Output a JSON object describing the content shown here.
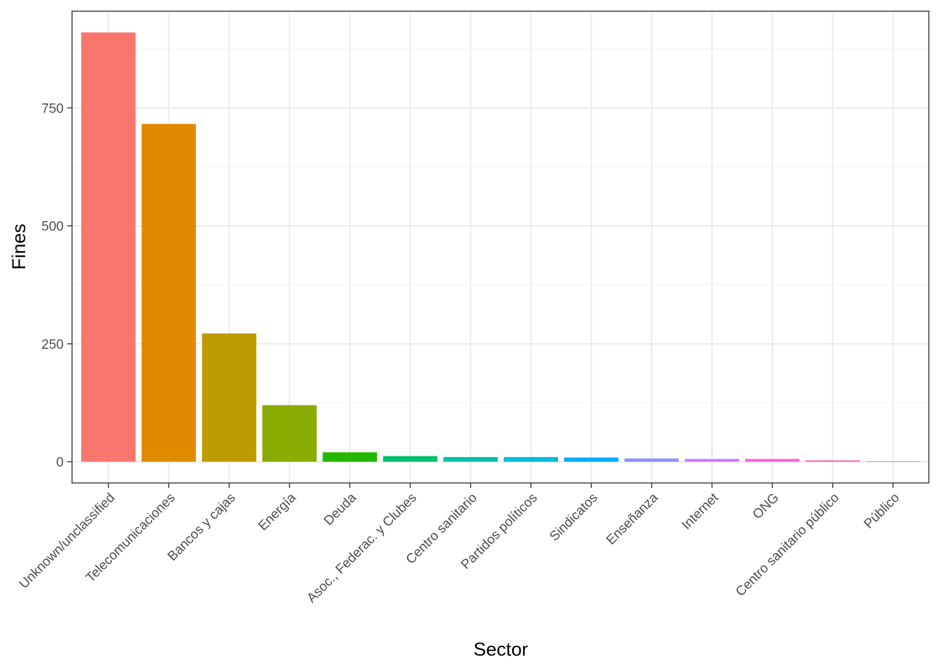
{
  "chart_data": {
    "type": "bar",
    "title": "",
    "xlabel": "Sector",
    "ylabel": "Fines",
    "ylim": [
      -45,
      955
    ],
    "y_ticks": [
      0,
      250,
      500,
      750
    ],
    "grid": true,
    "legend": "none",
    "categories": [
      "Unknown/unclassified",
      "Telecomunicaciones",
      "Bancos y cajas",
      "Energía",
      "Deuda",
      "Asoc., Federac. y Clubes",
      "Centro sanitario",
      "Partidos políticos",
      "Sindicatos",
      "Enseñanza",
      "Internet",
      "ONG",
      "Centro sanitario público",
      "Público"
    ],
    "values": [
      910,
      716,
      272,
      120,
      20,
      12,
      10,
      10,
      9,
      7,
      6,
      6,
      3,
      1
    ],
    "colors": [
      "#F8766D",
      "#E18A00",
      "#BE9C00",
      "#8CAB00",
      "#24B700",
      "#00BE70",
      "#00C1AB",
      "#00BBDA",
      "#00ACFC",
      "#8B93FF",
      "#D575FE",
      "#F962DD",
      "#FF65AC",
      "#FF6C90"
    ]
  }
}
